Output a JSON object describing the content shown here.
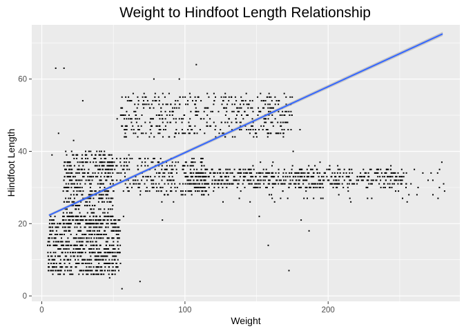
{
  "chart_data": {
    "type": "scatter",
    "title": "Weight to Hindfoot Length Relationship",
    "xlabel": "Weight",
    "ylabel": "Hindfoot Length",
    "xlim": [
      -7,
      292
    ],
    "ylim": [
      -1.5,
      75
    ],
    "xticks": [
      0,
      100,
      200
    ],
    "yticks": [
      0,
      20,
      40,
      60
    ],
    "grid": true,
    "colors": {
      "panel_background": "#ebebeb",
      "grid_major": "#ffffff",
      "point": "#000000",
      "trend_line": "#3366ff",
      "confidence_band": "#999999"
    },
    "trend_line": {
      "method": "linear",
      "x": [
        5,
        280
      ],
      "y": [
        22.3,
        72.5
      ]
    },
    "point_clusters": [
      {
        "x_range": [
          4,
          55
        ],
        "y_range": [
          6,
          22
        ],
        "count": 700
      },
      {
        "x_range": [
          15,
          50
        ],
        "y_range": [
          20,
          40
        ],
        "count": 420
      },
      {
        "x_range": [
          40,
          115
        ],
        "y_range": [
          28,
          38
        ],
        "count": 300
      },
      {
        "x_range": [
          100,
          255
        ],
        "y_range": [
          30,
          35
        ],
        "count": 520
      },
      {
        "x_range": [
          55,
          175
        ],
        "y_range": [
          44,
          56
        ],
        "count": 450
      },
      {
        "x_range": [
          80,
          285
        ],
        "y_range": [
          26,
          37
        ],
        "count": 120
      },
      {
        "x_range": [
          5,
          200
        ],
        "y_range": [
          2,
          64
        ],
        "count": 30
      }
    ]
  }
}
